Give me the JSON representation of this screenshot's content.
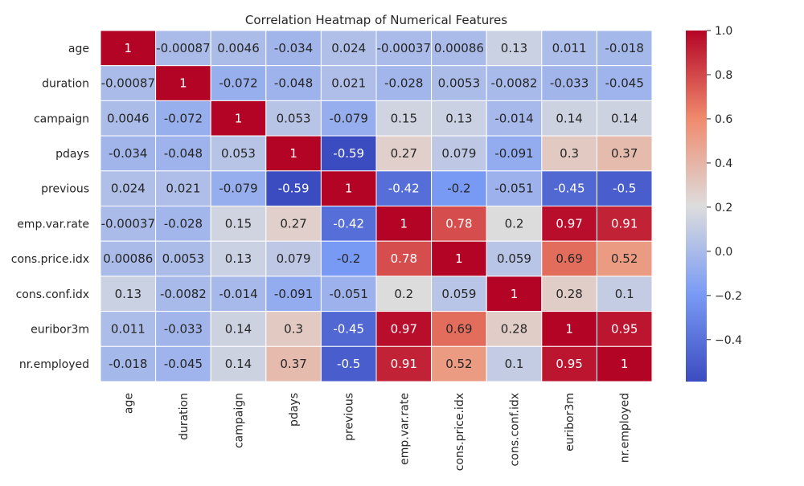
{
  "chart_data": {
    "type": "heatmap",
    "title": "Correlation Heatmap of Numerical Features",
    "rows": [
      "age",
      "duration",
      "campaign",
      "pdays",
      "previous",
      "emp.var.rate",
      "cons.price.idx",
      "cons.conf.idx",
      "euribor3m",
      "nr.employed"
    ],
    "columns": [
      "age",
      "duration",
      "campaign",
      "pdays",
      "previous",
      "emp.var.rate",
      "cons.price.idx",
      "cons.conf.idx",
      "euribor3m",
      "nr.employed"
    ],
    "values": [
      [
        1,
        -0.00087,
        0.0046,
        -0.034,
        0.024,
        -0.00037,
        0.00086,
        0.13,
        0.011,
        -0.018
      ],
      [
        -0.00087,
        1,
        -0.072,
        -0.048,
        0.021,
        -0.028,
        0.0053,
        -0.0082,
        -0.033,
        -0.045
      ],
      [
        0.0046,
        -0.072,
        1,
        0.053,
        -0.079,
        0.15,
        0.13,
        -0.014,
        0.14,
        0.14
      ],
      [
        -0.034,
        -0.048,
        0.053,
        1,
        -0.59,
        0.27,
        0.079,
        -0.091,
        0.3,
        0.37
      ],
      [
        0.024,
        0.021,
        -0.079,
        -0.59,
        1,
        -0.42,
        -0.2,
        -0.051,
        -0.45,
        -0.5
      ],
      [
        -0.00037,
        -0.028,
        0.15,
        0.27,
        -0.42,
        1,
        0.78,
        0.2,
        0.97,
        0.91
      ],
      [
        0.00086,
        0.0053,
        0.13,
        0.079,
        -0.2,
        0.78,
        1,
        0.059,
        0.69,
        0.52
      ],
      [
        0.13,
        -0.0082,
        -0.014,
        -0.091,
        -0.051,
        0.2,
        0.059,
        1,
        0.28,
        0.1
      ],
      [
        0.011,
        -0.033,
        0.14,
        0.3,
        -0.45,
        0.97,
        0.69,
        0.28,
        1,
        0.95
      ],
      [
        -0.018,
        -0.045,
        0.14,
        0.37,
        -0.5,
        0.91,
        0.52,
        0.1,
        0.95,
        1
      ]
    ],
    "cell_labels": [
      [
        "1",
        "-0.00087",
        "0.0046",
        "-0.034",
        "0.024",
        "-0.00037",
        "0.00086",
        "0.13",
        "0.011",
        "-0.018"
      ],
      [
        "-0.00087",
        "1",
        "-0.072",
        "-0.048",
        "0.021",
        "-0.028",
        "0.0053",
        "-0.0082",
        "-0.033",
        "-0.045"
      ],
      [
        "0.0046",
        "-0.072",
        "1",
        "0.053",
        "-0.079",
        "0.15",
        "0.13",
        "-0.014",
        "0.14",
        "0.14"
      ],
      [
        "-0.034",
        "-0.048",
        "0.053",
        "1",
        "-0.59",
        "0.27",
        "0.079",
        "-0.091",
        "0.3",
        "0.37"
      ],
      [
        "0.024",
        "0.021",
        "-0.079",
        "-0.59",
        "1",
        "-0.42",
        "-0.2",
        "-0.051",
        "-0.45",
        "-0.5"
      ],
      [
        "-0.00037",
        "-0.028",
        "0.15",
        "0.27",
        "-0.42",
        "1",
        "0.78",
        "0.2",
        "0.97",
        "0.91"
      ],
      [
        "0.00086",
        "0.0053",
        "0.13",
        "0.079",
        "-0.2",
        "0.78",
        "1",
        "0.059",
        "0.69",
        "0.52"
      ],
      [
        "0.13",
        "-0.0082",
        "-0.014",
        "-0.091",
        "-0.051",
        "0.2",
        "0.059",
        "1",
        "0.28",
        "0.1"
      ],
      [
        "0.011",
        "-0.033",
        "0.14",
        "0.3",
        "-0.45",
        "0.97",
        "0.69",
        "0.28",
        "1",
        "0.95"
      ],
      [
        "-0.018",
        "-0.045",
        "0.14",
        "0.37",
        "-0.5",
        "0.91",
        "0.52",
        "0.1",
        "0.95",
        "1"
      ]
    ],
    "colormap": "coolwarm",
    "vmin": -0.59,
    "vmax": 1.0,
    "colorbar": {
      "ticks": [
        1.0,
        0.8,
        0.6,
        0.4,
        0.2,
        0.0,
        -0.2,
        -0.4
      ],
      "tick_labels": [
        "1.0",
        "0.8",
        "0.6",
        "0.4",
        "0.2",
        "0.0",
        "−0.2",
        "−0.4"
      ],
      "placement": "right"
    },
    "grid": true,
    "colors": {
      "low": "#3b4cc0",
      "mid": "#dddddd",
      "high": "#b40426",
      "cell_border": "#ffffff",
      "text_dark": "#262626",
      "text_light": "#ffffff"
    }
  }
}
